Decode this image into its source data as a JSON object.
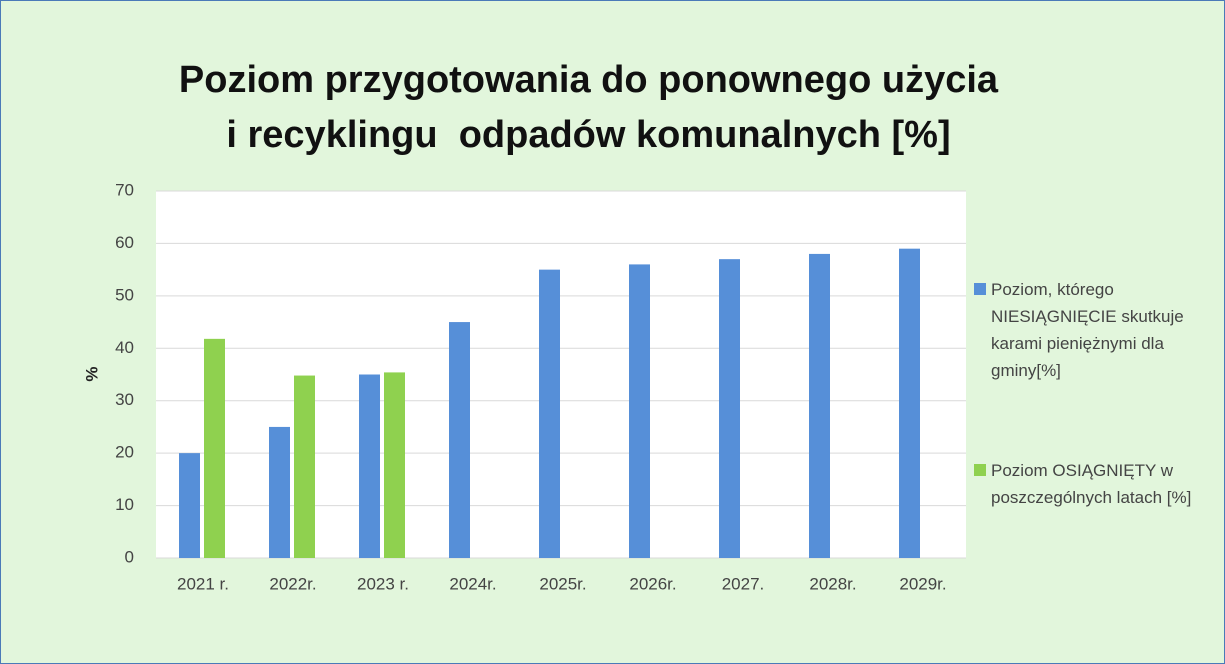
{
  "chart_data": {
    "type": "bar",
    "title": "Poziom przygotowania do ponownego użycia\ni recyklingu  odpadów komunalnych [%]",
    "y_label": "%",
    "categories": [
      "2021 r.",
      "2022r.",
      "2023 r.",
      "2024r.",
      "2025r.",
      "2026r.",
      "2027.",
      "2028r.",
      "2029r."
    ],
    "series": [
      {
        "name": "Poziom, którego NIESIĄGNIĘCIE skutkuje karami pieniężnymi dla gminy[%]",
        "color": "#568fd8",
        "values": [
          20,
          25,
          35,
          45,
          55,
          56,
          57,
          58,
          59
        ]
      },
      {
        "name": "Poziom OSIĄGNIĘTY w poszczególnych latach [%]",
        "color": "#8fd14f",
        "values": [
          41.8,
          34.8,
          35.4,
          null,
          null,
          null,
          null,
          null,
          null
        ]
      }
    ],
    "ylim": [
      0,
      70
    ],
    "yticks": [
      0,
      10,
      20,
      30,
      40,
      50,
      60,
      70
    ],
    "grid": true,
    "legend": "right"
  }
}
